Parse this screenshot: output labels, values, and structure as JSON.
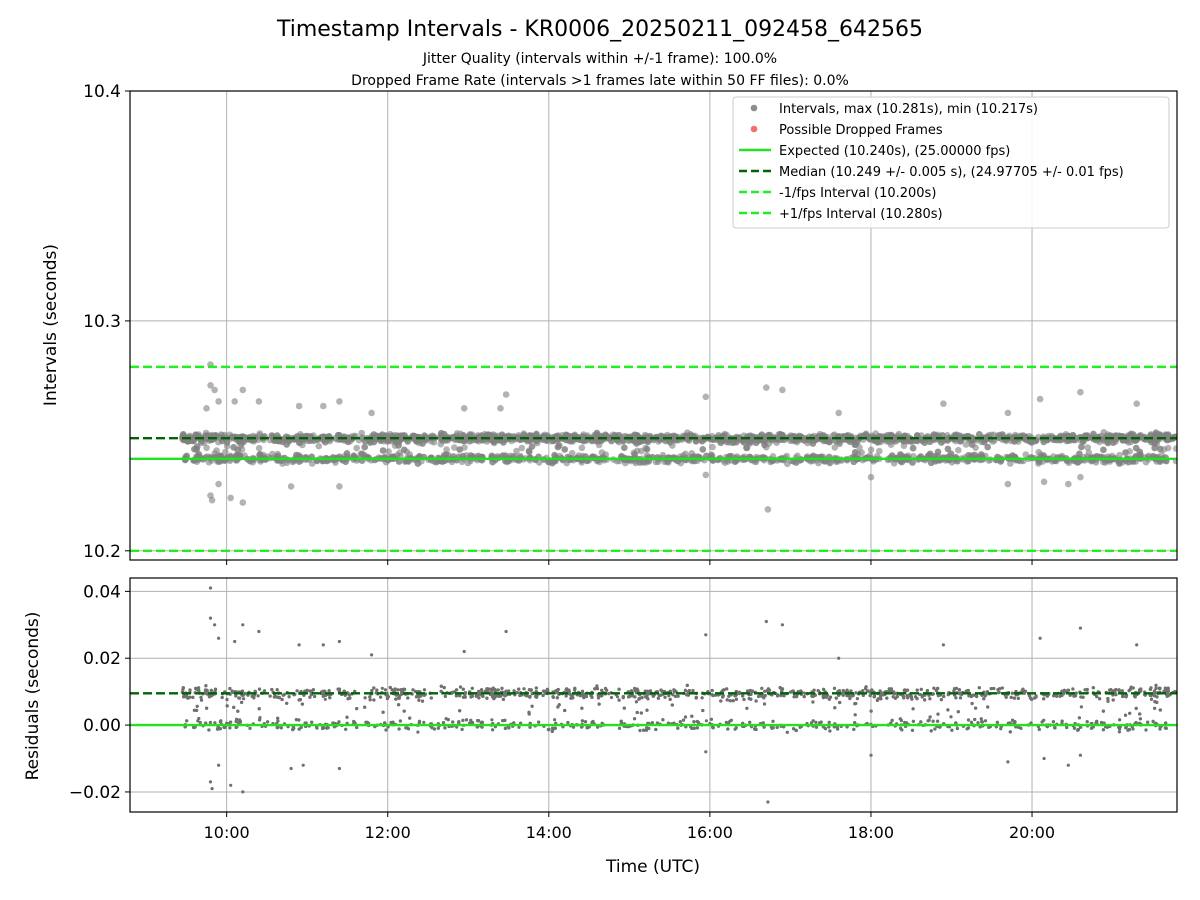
{
  "title": "Timestamp Intervals - KR0006_20250211_092458_642565",
  "subtitle_1": "Jitter Quality (intervals within +/-1 frame): 100.0%",
  "subtitle_2": "Dropped Frame Rate (intervals >1 frames late within 50 FF files): 0.0%",
  "chart_data": [
    {
      "type": "scatter",
      "name": "intervals-panel",
      "ylabel": "Intervals (seconds)",
      "xlabel": "",
      "ylim": [
        10.196,
        10.4
      ],
      "xlim_hours": [
        8.8,
        21.8
      ],
      "yticks": [
        {
          "value": 10.2,
          "label": "10.2"
        },
        {
          "value": 10.3,
          "label": "10.3"
        },
        {
          "value": 10.4,
          "label": "10.4"
        }
      ],
      "grid": true,
      "legend_position": "top-right",
      "legend": [
        {
          "label": "Intervals, max (10.281s), min (10.217s)",
          "style": "marker",
          "color": "#808080"
        },
        {
          "label": "Possible Dropped Frames",
          "style": "marker",
          "color": "#f06060"
        },
        {
          "label": "Expected (10.240s), (25.00000 fps)",
          "style": "solid",
          "color": "#22e022"
        },
        {
          "label": "Median (10.249 +/- 0.005 s), (24.97705 +/- 0.01 fps)",
          "style": "dashed",
          "color": "#006400"
        },
        {
          "label": "-1/fps Interval (10.200s)",
          "style": "dashed",
          "color": "#22ee22"
        },
        {
          "label": "+1/fps Interval (10.280s)",
          "style": "dashed",
          "color": "#22ee22"
        }
      ],
      "reference_lines": [
        {
          "name": "expected",
          "value": 10.24,
          "style": "solid",
          "color": "#22e022"
        },
        {
          "name": "median",
          "value": 10.249,
          "style": "dashed",
          "color": "#006400"
        },
        {
          "name": "minus-one-frame",
          "value": 10.2,
          "style": "dashed",
          "color": "#22ee22"
        },
        {
          "name": "plus-one-frame",
          "value": 10.28,
          "style": "dashed",
          "color": "#22ee22"
        }
      ],
      "series": [
        {
          "name": "Intervals",
          "color": "#808080",
          "x_start_hours": 9.45,
          "x_end_hours": 21.8,
          "cluster_values": [
            10.249,
            10.24
          ],
          "points": [
            {
              "x": 9.8,
              "y": 10.281
            },
            {
              "x": 9.8,
              "y": 10.272
            },
            {
              "x": 9.85,
              "y": 10.27
            },
            {
              "x": 9.9,
              "y": 10.265
            },
            {
              "x": 9.75,
              "y": 10.262
            },
            {
              "x": 10.1,
              "y": 10.265
            },
            {
              "x": 10.2,
              "y": 10.27
            },
            {
              "x": 10.4,
              "y": 10.265
            },
            {
              "x": 10.9,
              "y": 10.263
            },
            {
              "x": 11.2,
              "y": 10.263
            },
            {
              "x": 11.4,
              "y": 10.265
            },
            {
              "x": 11.8,
              "y": 10.26
            },
            {
              "x": 12.95,
              "y": 10.262
            },
            {
              "x": 13.4,
              "y": 10.262
            },
            {
              "x": 13.47,
              "y": 10.268
            },
            {
              "x": 15.95,
              "y": 10.267
            },
            {
              "x": 16.7,
              "y": 10.271
            },
            {
              "x": 16.9,
              "y": 10.27
            },
            {
              "x": 17.6,
              "y": 10.26
            },
            {
              "x": 18.9,
              "y": 10.264
            },
            {
              "x": 19.7,
              "y": 10.26
            },
            {
              "x": 20.1,
              "y": 10.266
            },
            {
              "x": 20.6,
              "y": 10.269
            },
            {
              "x": 21.3,
              "y": 10.264
            },
            {
              "x": 9.8,
              "y": 10.224
            },
            {
              "x": 9.82,
              "y": 10.222
            },
            {
              "x": 10.05,
              "y": 10.223
            },
            {
              "x": 10.2,
              "y": 10.221
            },
            {
              "x": 9.9,
              "y": 10.229
            },
            {
              "x": 10.8,
              "y": 10.228
            },
            {
              "x": 11.4,
              "y": 10.228
            },
            {
              "x": 15.95,
              "y": 10.233
            },
            {
              "x": 16.72,
              "y": 10.218
            },
            {
              "x": 18.0,
              "y": 10.232
            },
            {
              "x": 19.7,
              "y": 10.229
            },
            {
              "x": 20.15,
              "y": 10.23
            },
            {
              "x": 20.45,
              "y": 10.229
            },
            {
              "x": 20.6,
              "y": 10.232
            }
          ]
        }
      ]
    },
    {
      "type": "scatter",
      "name": "residuals-panel",
      "ylabel": "Residuals (seconds)",
      "xlabel": "Time (UTC)",
      "ylim": [
        -0.026,
        0.044
      ],
      "xlim_hours": [
        8.8,
        21.8
      ],
      "yticks": [
        {
          "value": 0.04,
          "label": "0.04"
        },
        {
          "value": 0.02,
          "label": "0.02"
        },
        {
          "value": 0.0,
          "label": "0.00"
        },
        {
          "value": -0.02,
          "label": "−0.02"
        }
      ],
      "xticks": [
        {
          "value": 10,
          "label": "10:00"
        },
        {
          "value": 12,
          "label": "12:00"
        },
        {
          "value": 14,
          "label": "14:00"
        },
        {
          "value": 16,
          "label": "16:00"
        },
        {
          "value": 18,
          "label": "18:00"
        },
        {
          "value": 20,
          "label": "20:00"
        }
      ],
      "grid": true,
      "reference_lines": [
        {
          "name": "median-residual",
          "value": 0.0095,
          "style": "dashed",
          "color": "#006400"
        },
        {
          "name": "zero",
          "value": 0.0,
          "style": "solid",
          "color": "#22e022"
        }
      ],
      "series": [
        {
          "name": "Residuals",
          "color": "#707070",
          "x_start_hours": 9.45,
          "x_end_hours": 21.8,
          "cluster_values": [
            0.0095,
            0.0
          ],
          "points": [
            {
              "x": 9.8,
              "y": 0.041
            },
            {
              "x": 9.8,
              "y": 0.032
            },
            {
              "x": 9.85,
              "y": 0.03
            },
            {
              "x": 9.9,
              "y": 0.026
            },
            {
              "x": 10.1,
              "y": 0.025
            },
            {
              "x": 10.2,
              "y": 0.03
            },
            {
              "x": 10.4,
              "y": 0.028
            },
            {
              "x": 10.9,
              "y": 0.024
            },
            {
              "x": 11.2,
              "y": 0.024
            },
            {
              "x": 11.4,
              "y": 0.025
            },
            {
              "x": 11.8,
              "y": 0.021
            },
            {
              "x": 12.95,
              "y": 0.022
            },
            {
              "x": 13.47,
              "y": 0.028
            },
            {
              "x": 15.95,
              "y": 0.027
            },
            {
              "x": 16.7,
              "y": 0.031
            },
            {
              "x": 16.9,
              "y": 0.03
            },
            {
              "x": 17.6,
              "y": 0.02
            },
            {
              "x": 18.9,
              "y": 0.024
            },
            {
              "x": 20.1,
              "y": 0.026
            },
            {
              "x": 20.6,
              "y": 0.029
            },
            {
              "x": 21.3,
              "y": 0.024
            },
            {
              "x": 9.8,
              "y": -0.017
            },
            {
              "x": 9.82,
              "y": -0.019
            },
            {
              "x": 10.05,
              "y": -0.018
            },
            {
              "x": 10.2,
              "y": -0.02
            },
            {
              "x": 9.9,
              "y": -0.012
            },
            {
              "x": 10.8,
              "y": -0.013
            },
            {
              "x": 10.95,
              "y": -0.012
            },
            {
              "x": 11.4,
              "y": -0.013
            },
            {
              "x": 15.95,
              "y": -0.008
            },
            {
              "x": 16.72,
              "y": -0.023
            },
            {
              "x": 18.0,
              "y": -0.009
            },
            {
              "x": 19.7,
              "y": -0.011
            },
            {
              "x": 20.15,
              "y": -0.01
            },
            {
              "x": 20.45,
              "y": -0.012
            },
            {
              "x": 20.6,
              "y": -0.009
            }
          ]
        }
      ]
    }
  ]
}
